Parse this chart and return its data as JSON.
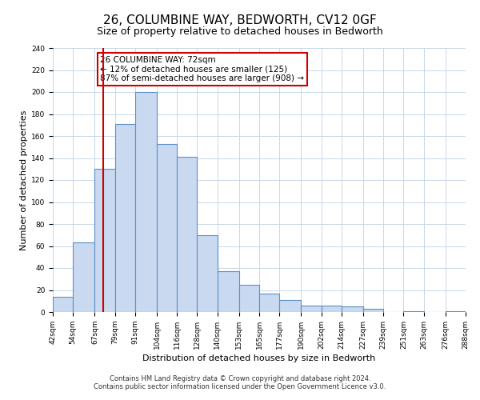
{
  "title": "26, COLUMBINE WAY, BEDWORTH, CV12 0GF",
  "subtitle": "Size of property relative to detached houses in Bedworth",
  "xlabel": "Distribution of detached houses by size in Bedworth",
  "ylabel": "Number of detached properties",
  "bar_edges": [
    42,
    54,
    67,
    79,
    91,
    104,
    116,
    128,
    140,
    153,
    165,
    177,
    190,
    202,
    214,
    227,
    239,
    251,
    263,
    276,
    288
  ],
  "bar_heights": [
    14,
    63,
    130,
    171,
    200,
    153,
    141,
    70,
    37,
    25,
    17,
    11,
    6,
    6,
    5,
    3,
    0,
    1,
    0,
    1
  ],
  "bar_color": "#c9d9f0",
  "bar_edge_color": "#5b8fc9",
  "vline_x": 72,
  "vline_color": "#cc0000",
  "annotation_line1": "26 COLUMBINE WAY: 72sqm",
  "annotation_line2": "← 12% of detached houses are smaller (125)",
  "annotation_line3": "87% of semi-detached houses are larger (908) →",
  "box_edge_color": "#cc0000",
  "ylim": [
    0,
    240
  ],
  "yticks": [
    0,
    20,
    40,
    60,
    80,
    100,
    120,
    140,
    160,
    180,
    200,
    220,
    240
  ],
  "footer1": "Contains HM Land Registry data © Crown copyright and database right 2024.",
  "footer2": "Contains public sector information licensed under the Open Government Licence v3.0.",
  "bg_color": "#ffffff",
  "grid_color": "#c8d8e8",
  "title_fontsize": 11,
  "subtitle_fontsize": 9,
  "tick_label_fontsize": 6.5,
  "axis_label_fontsize": 8,
  "annotation_fontsize": 7.5,
  "footer_fontsize": 6
}
